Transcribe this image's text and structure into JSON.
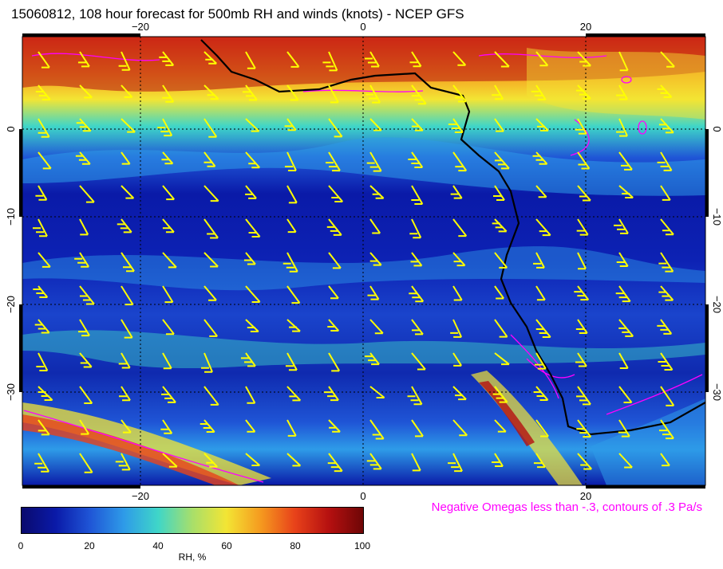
{
  "title": "15060812, 108 hour forecast for 500mb RH and winds (knots) - NCEP GFS",
  "map": {
    "lon_ticks": [
      "−20",
      "0",
      "20"
    ],
    "lat_ticks": [
      "0",
      "−10",
      "−20",
      "−30"
    ],
    "lon_values": [
      -20,
      0,
      20
    ],
    "lat_values": [
      0,
      -10,
      -20,
      -30
    ]
  },
  "omega_note": "Negative Omegas less than -.3, contours of .3 Pa/s",
  "colorbar": {
    "title": "RH, %",
    "ticks": [
      "0",
      "20",
      "40",
      "60",
      "80",
      "100"
    ],
    "colors": {
      "dry": "#0a0a6e",
      "moist": "#6e0606",
      "barbs": "#ffff00",
      "omega_contours": "#ff00ff",
      "coastline": "#000000"
    }
  }
}
